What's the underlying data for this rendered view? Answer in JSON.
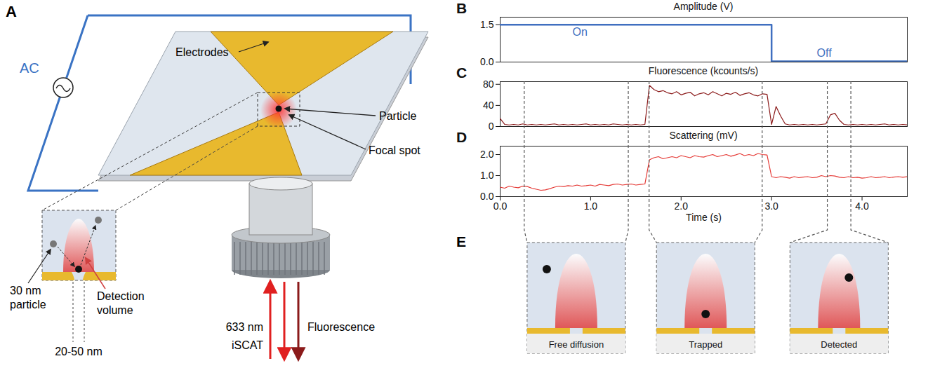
{
  "diagram": {
    "panel_a": {
      "letter": "A",
      "ac": "AC",
      "electrodes": "Electrodes",
      "particle": "Particle",
      "focal_spot": "Focal spot",
      "inset_particle": [
        "30 nm",
        "particle"
      ],
      "detection_volume": [
        "Detection",
        "volume"
      ],
      "gap": "20-50 nm",
      "wavelength": "633 nm",
      "iscat": "iSCAT",
      "fluorescence": "Fluorescence"
    },
    "panel_e": {
      "letter": "E",
      "insets": [
        {
          "label": "Free diffusion",
          "time_range": [
            0.27,
            1.42
          ]
        },
        {
          "label": "Trapped",
          "time_range": [
            1.65,
            2.9
          ]
        },
        {
          "label": "Detected",
          "time_range": [
            3.62,
            3.88
          ]
        }
      ]
    }
  },
  "chart_data": [
    {
      "panel": "B",
      "type": "line",
      "title": "Amplitude (V)",
      "color": "#3f6fc0",
      "line_style": "step",
      "x": [
        0,
        3,
        4.5
      ],
      "values": [
        1.5,
        0.03,
        0.03
      ],
      "xlim": [
        0,
        4.5
      ],
      "ylim": [
        0,
        1.8
      ],
      "yticks": [
        0,
        1.5
      ],
      "tick_labels": "y",
      "annotations": [
        {
          "text": "On",
          "x": 0.8,
          "y": 1.2
        },
        {
          "text": "Off",
          "x": 3.5,
          "y": 0.35
        }
      ]
    },
    {
      "panel": "C",
      "type": "line",
      "title": "Fluorescence  (kcounts/s)",
      "color": "#8b1a1a",
      "x": [
        0,
        0.05,
        0.1,
        0.15,
        0.2,
        0.25,
        0.3,
        0.35,
        0.4,
        0.45,
        0.5,
        0.55,
        0.6,
        0.65,
        0.7,
        0.75,
        0.8,
        0.85,
        0.9,
        0.95,
        1,
        1.05,
        1.1,
        1.15,
        1.2,
        1.25,
        1.3,
        1.35,
        1.4,
        1.45,
        1.5,
        1.55,
        1.6,
        1.65,
        1.7,
        1.75,
        1.8,
        1.85,
        1.9,
        1.95,
        2,
        2.05,
        2.1,
        2.15,
        2.2,
        2.25,
        2.3,
        2.35,
        2.4,
        2.45,
        2.5,
        2.55,
        2.6,
        2.65,
        2.7,
        2.75,
        2.8,
        2.85,
        2.9,
        2.95,
        3,
        3.05,
        3.1,
        3.15,
        3.2,
        3.25,
        3.3,
        3.35,
        3.4,
        3.45,
        3.5,
        3.55,
        3.6,
        3.65,
        3.7,
        3.75,
        3.8,
        3.85,
        3.9,
        3.95,
        4,
        4.05,
        4.1,
        4.15,
        4.2,
        4.25,
        4.3,
        4.35,
        4.4,
        4.45,
        4.5
      ],
      "values": [
        15,
        4,
        3,
        4,
        3,
        5,
        3,
        4,
        3,
        4,
        3,
        4,
        5,
        3,
        4,
        3,
        4,
        3,
        4,
        5,
        3,
        4,
        3,
        4,
        3,
        5,
        4,
        3,
        4,
        3,
        4,
        3,
        4,
        78,
        70,
        66,
        68,
        64,
        62,
        66,
        60,
        63,
        65,
        58,
        62,
        64,
        60,
        66,
        62,
        58,
        63,
        61,
        65,
        59,
        62,
        64,
        60,
        58,
        62,
        61,
        4,
        38,
        20,
        5,
        3,
        4,
        3,
        4,
        3,
        4,
        3,
        4,
        5,
        22,
        25,
        12,
        4,
        3,
        4,
        3,
        4,
        3,
        4,
        3,
        4,
        5,
        3,
        4,
        3,
        4,
        3
      ],
      "xlim": [
        0,
        4.5
      ],
      "ylim": [
        0,
        85
      ],
      "yticks": [
        0,
        40,
        80
      ],
      "tick_labels": "y"
    },
    {
      "panel": "D",
      "type": "line",
      "title": "Scattering (mV)",
      "color": "#e53935",
      "xlabel": "Time (s)",
      "x": [
        0,
        0.05,
        0.1,
        0.15,
        0.2,
        0.25,
        0.3,
        0.35,
        0.4,
        0.45,
        0.5,
        0.55,
        0.6,
        0.65,
        0.7,
        0.75,
        0.8,
        0.85,
        0.9,
        0.95,
        1,
        1.05,
        1.1,
        1.15,
        1.2,
        1.25,
        1.3,
        1.35,
        1.4,
        1.45,
        1.5,
        1.55,
        1.6,
        1.65,
        1.7,
        1.75,
        1.8,
        1.85,
        1.9,
        1.95,
        2,
        2.05,
        2.1,
        2.15,
        2.2,
        2.25,
        2.3,
        2.35,
        2.4,
        2.45,
        2.5,
        2.55,
        2.6,
        2.65,
        2.7,
        2.75,
        2.8,
        2.85,
        2.9,
        2.95,
        3,
        3.05,
        3.1,
        3.15,
        3.2,
        3.25,
        3.3,
        3.35,
        3.4,
        3.45,
        3.5,
        3.55,
        3.6,
        3.65,
        3.7,
        3.75,
        3.8,
        3.85,
        3.9,
        3.95,
        4,
        4.05,
        4.1,
        4.15,
        4.2,
        4.25,
        4.3,
        4.35,
        4.4,
        4.45,
        4.5
      ],
      "values": [
        0.45,
        0.4,
        0.5,
        0.45,
        0.42,
        0.5,
        0.48,
        0.4,
        0.35,
        0.3,
        0.32,
        0.38,
        0.45,
        0.5,
        0.48,
        0.52,
        0.5,
        0.55,
        0.5,
        0.52,
        0.55,
        0.5,
        0.58,
        0.55,
        0.52,
        0.58,
        0.6,
        0.55,
        0.58,
        0.6,
        0.55,
        0.58,
        0.6,
        1.75,
        1.85,
        1.9,
        1.8,
        1.85,
        1.9,
        1.85,
        1.95,
        1.9,
        1.85,
        1.95,
        1.9,
        1.88,
        1.95,
        2.0,
        1.9,
        1.95,
        2.0,
        1.92,
        1.98,
        2.05,
        1.95,
        2.0,
        1.95,
        2.05,
        2.0,
        1.98,
        0.95,
        0.9,
        0.95,
        0.92,
        0.88,
        0.95,
        0.9,
        0.93,
        0.95,
        0.9,
        0.92,
        1.0,
        0.95,
        1.0,
        0.98,
        0.92,
        0.9,
        0.95,
        0.9,
        0.92,
        0.88,
        0.9,
        0.95,
        0.9,
        0.92,
        0.95,
        0.9,
        0.93,
        0.95,
        0.92,
        0.95
      ],
      "xlim": [
        0,
        4.5
      ],
      "ylim": [
        0,
        2.4
      ],
      "xticks": [
        0,
        1,
        2,
        3,
        4
      ],
      "yticks": [
        0,
        1,
        2
      ]
    }
  ]
}
